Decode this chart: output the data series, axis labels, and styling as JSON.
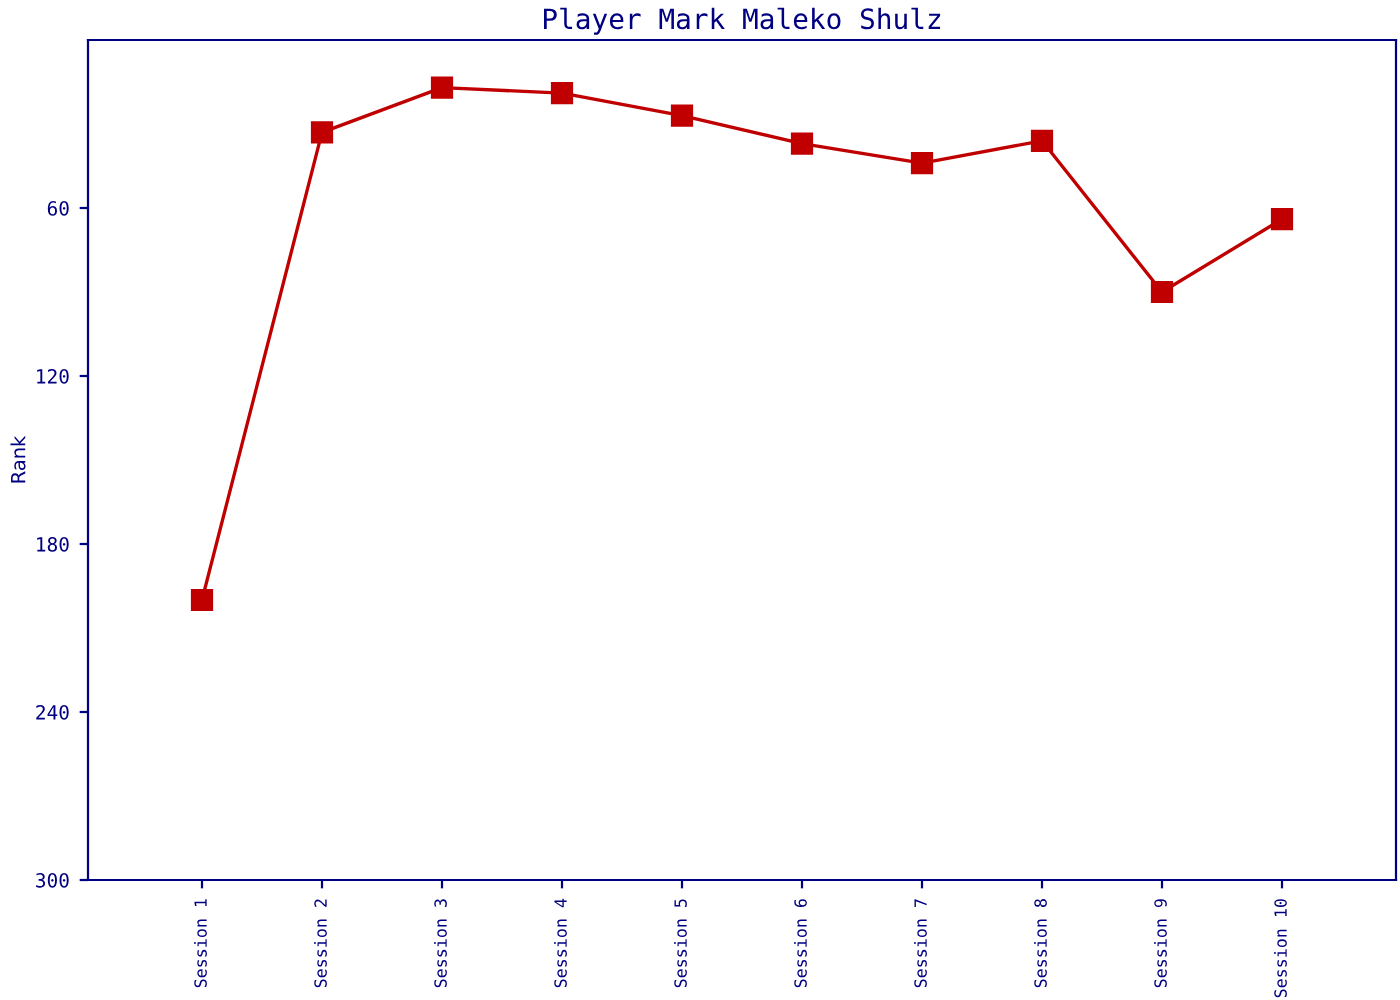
{
  "chart_data": {
    "type": "line",
    "title": "Player Mark Maleko Shulz",
    "ylabel": "Rank",
    "categories": [
      "Session 1",
      "Session 2",
      "Session 3",
      "Session 4",
      "Session 5",
      "Session 6",
      "Session 7",
      "Session 8",
      "Session 9",
      "Session 10"
    ],
    "series": [
      {
        "color": "#c00000",
        "values": [
          200,
          33,
          17,
          19,
          27,
          37,
          44,
          36,
          90,
          64
        ]
      }
    ],
    "ylim": [
      300,
      0
    ],
    "yticks": [
      60,
      120,
      180,
      240,
      300
    ],
    "grid": false,
    "marker": "square",
    "line_style": "solid"
  }
}
